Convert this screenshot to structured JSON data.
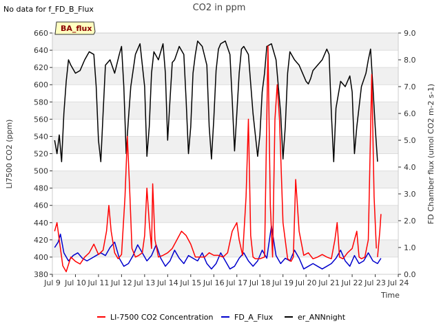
{
  "nodata_text": "No data for f_FD_B_Flux",
  "badge_text": "BA_flux",
  "chart_data": {
    "type": "line",
    "title": "CO2 in ppm",
    "xlabel": "Time",
    "ylabel_left": "LI7500 CO2 (ppm)",
    "ylabel_right": "FD Chamber flux (umol CO2 m-2 s-1)",
    "xlim": [
      9,
      24
    ],
    "ylim_left": [
      380,
      660
    ],
    "ylim_right": [
      0,
      9
    ],
    "x_ticks": [
      9,
      10,
      11,
      12,
      13,
      14,
      15,
      16,
      17,
      18,
      19,
      20,
      21,
      22,
      23,
      24
    ],
    "x_tick_labels": [
      "Jul 9",
      "Jul 10",
      "Jul 11",
      "Jul 12",
      "Jul 13",
      "Jul 14",
      "Jul 15",
      "Jul 16",
      "Jul 17",
      "Jul 18",
      "Jul 19",
      "Jul 20",
      "Jul 21",
      "Jul 22",
      "Jul 23",
      "Jul 24"
    ],
    "left_ticks": [
      380,
      400,
      420,
      440,
      460,
      480,
      500,
      520,
      540,
      560,
      580,
      600,
      620,
      640,
      660
    ],
    "right_ticks": [
      0.0,
      1.0,
      2.0,
      3.0,
      4.0,
      5.0,
      6.0,
      7.0,
      8.0,
      9.0
    ],
    "right_tick_labels": [
      "0.0",
      "1.0",
      "2.0",
      "3.0",
      "4.0",
      "5.0",
      "6.0",
      "7.0",
      "8.0",
      "9.0"
    ],
    "grid": true,
    "legend_position": "bottom",
    "series": [
      {
        "name": "LI-7500 CO2 Concentration",
        "color": "#ff0000",
        "axis": "left",
        "x": [
          9.1,
          9.2,
          9.3,
          9.45,
          9.6,
          9.8,
          10.0,
          10.2,
          10.4,
          10.6,
          10.8,
          11.0,
          11.2,
          11.35,
          11.45,
          11.55,
          11.7,
          11.85,
          12.0,
          12.15,
          12.25,
          12.35,
          12.45,
          12.6,
          12.75,
          12.9,
          13.0,
          13.1,
          13.2,
          13.3,
          13.35,
          13.45,
          13.6,
          13.8,
          14.0,
          14.2,
          14.4,
          14.6,
          14.8,
          15.0,
          15.2,
          15.4,
          15.6,
          15.8,
          16.0,
          16.2,
          16.4,
          16.6,
          16.8,
          17.0,
          17.1,
          17.25,
          17.4,
          17.5,
          17.6,
          17.7,
          17.8,
          18.0,
          18.2,
          18.35,
          18.45,
          18.55,
          18.65,
          18.75,
          18.85,
          19.0,
          19.2,
          19.35,
          19.45,
          19.55,
          19.7,
          19.9,
          20.1,
          20.3,
          20.5,
          20.7,
          20.9,
          21.1,
          21.25,
          21.35,
          21.45,
          21.6,
          21.8,
          22.0,
          22.1,
          22.2,
          22.3,
          22.4,
          22.55,
          22.7,
          22.85,
          22.95,
          23.05
        ],
        "y": [
          430,
          440,
          420,
          390,
          383,
          400,
          395,
          392,
          400,
          405,
          415,
          403,
          408,
          430,
          460,
          430,
          405,
          398,
          403,
          470,
          540,
          480,
          410,
          400,
          402,
          405,
          425,
          480,
          440,
          410,
          485,
          420,
          400,
          402,
          405,
          410,
          420,
          430,
          425,
          415,
          400,
          400,
          400,
          405,
          402,
          402,
          400,
          405,
          430,
          440,
          420,
          402,
          470,
          560,
          425,
          400,
          398,
          398,
          400,
          645,
          460,
          400,
          560,
          600,
          560,
          440,
          398,
          395,
          400,
          490,
          430,
          402,
          405,
          398,
          400,
          403,
          400,
          398,
          420,
          440,
          400,
          398,
          405,
          410,
          420,
          430,
          400,
          398,
          400,
          420,
          612,
          470,
          410
        ],
        "x2": [
          23.1,
          23.2,
          23.25
        ],
        "y2": [
          400,
          430,
          450
        ]
      },
      {
        "name": "FD_A_Flux",
        "color": "#0000cc",
        "axis": "right",
        "x": [
          9.1,
          9.25,
          9.35,
          9.5,
          9.7,
          9.9,
          10.1,
          10.3,
          10.5,
          10.7,
          10.9,
          11.1,
          11.3,
          11.5,
          11.7,
          11.9,
          12.1,
          12.3,
          12.5,
          12.7,
          12.9,
          13.1,
          13.3,
          13.5,
          13.7,
          13.9,
          14.1,
          14.3,
          14.5,
          14.7,
          14.9,
          15.1,
          15.3,
          15.5,
          15.7,
          15.9,
          16.1,
          16.3,
          16.5,
          16.7,
          16.9,
          17.1,
          17.3,
          17.5,
          17.7,
          17.9,
          18.1,
          18.3,
          18.5,
          18.7,
          18.9,
          19.1,
          19.3,
          19.5,
          19.7,
          19.9,
          20.1,
          20.3,
          20.5,
          20.7,
          20.9,
          21.1,
          21.3,
          21.5,
          21.7,
          21.9,
          22.1,
          22.3,
          22.5,
          22.7,
          22.9,
          23.1,
          23.25
        ],
        "y": [
          1.0,
          1.2,
          1.5,
          0.8,
          0.5,
          0.7,
          0.8,
          0.6,
          0.5,
          0.6,
          0.7,
          0.8,
          0.7,
          1.0,
          1.2,
          0.6,
          0.3,
          0.4,
          0.7,
          1.1,
          0.8,
          0.5,
          0.7,
          1.1,
          0.6,
          0.3,
          0.5,
          0.9,
          0.6,
          0.4,
          0.7,
          0.6,
          0.5,
          0.8,
          0.4,
          0.2,
          0.4,
          0.8,
          0.5,
          0.2,
          0.3,
          0.6,
          0.8,
          0.5,
          0.3,
          0.5,
          0.9,
          0.6,
          1.8,
          0.7,
          0.4,
          0.6,
          0.5,
          0.9,
          0.6,
          0.2,
          0.3,
          0.4,
          0.3,
          0.2,
          0.3,
          0.4,
          0.6,
          0.9,
          0.5,
          0.3,
          0.7,
          0.4,
          0.5,
          0.8,
          0.5,
          0.4,
          0.6
        ]
      },
      {
        "name": "er_ANNnight",
        "color": "#000000",
        "axis": "right",
        "x": [
          9.1,
          9.2,
          9.3,
          9.4,
          9.5,
          9.6,
          9.7,
          9.8,
          10.0,
          10.2,
          10.4,
          10.6,
          10.8,
          10.9,
          11.0,
          11.1,
          11.2,
          11.3,
          11.5,
          11.7,
          11.9,
          12.0,
          12.1,
          12.2,
          12.3,
          12.4,
          12.6,
          12.8,
          13.0,
          13.1,
          13.2,
          13.3,
          13.4,
          13.6,
          13.8,
          13.9,
          14.0,
          14.1,
          14.2,
          14.3,
          14.5,
          14.7,
          14.8,
          14.9,
          15.0,
          15.1,
          15.2,
          15.3,
          15.5,
          15.7,
          15.8,
          15.9,
          16.0,
          16.1,
          16.2,
          16.3,
          16.5,
          16.7,
          16.8,
          16.9,
          17.0,
          17.1,
          17.2,
          17.3,
          17.5,
          17.7,
          17.9,
          18.0,
          18.1,
          18.2,
          18.3,
          18.5,
          18.7,
          18.9,
          19.0,
          19.1,
          19.2,
          19.3,
          19.5,
          19.7,
          19.9,
          20.0,
          20.1,
          20.2,
          20.3,
          20.5,
          20.7,
          20.9,
          21.0,
          21.1,
          21.2,
          21.3,
          21.5,
          21.7,
          21.9,
          22.0,
          22.1,
          22.2,
          22.4,
          22.6,
          22.7,
          22.8,
          22.9,
          23.0,
          23.1
        ],
        "y": [
          5.0,
          4.5,
          5.2,
          4.2,
          6.0,
          7.2,
          8.0,
          7.8,
          7.5,
          7.6,
          8.0,
          8.3,
          8.2,
          7.0,
          5.0,
          4.2,
          6.0,
          7.8,
          8.0,
          7.5,
          8.2,
          8.5,
          7.0,
          4.5,
          5.8,
          7.0,
          8.2,
          8.6,
          7.0,
          4.4,
          5.5,
          7.5,
          8.3,
          8.0,
          8.6,
          7.5,
          5.0,
          6.5,
          7.9,
          8.0,
          8.5,
          8.2,
          6.5,
          4.5,
          5.5,
          7.5,
          8.2,
          8.7,
          8.5,
          7.8,
          5.5,
          4.3,
          5.8,
          7.6,
          8.4,
          8.6,
          8.7,
          8.2,
          6.5,
          4.6,
          6.0,
          7.5,
          8.4,
          8.5,
          8.2,
          6.0,
          4.4,
          5.2,
          6.8,
          7.5,
          8.5,
          8.6,
          8.0,
          6.0,
          4.3,
          5.5,
          7.5,
          8.3,
          8.0,
          7.8,
          7.4,
          7.2,
          7.1,
          7.3,
          7.6,
          7.8,
          8.0,
          8.4,
          8.2,
          6.0,
          4.2,
          6.2,
          7.2,
          7.0,
          7.4,
          6.8,
          4.5,
          5.5,
          7.0,
          7.5,
          8.0,
          8.4,
          7.0,
          5.5,
          4.2
        ]
      }
    ]
  }
}
